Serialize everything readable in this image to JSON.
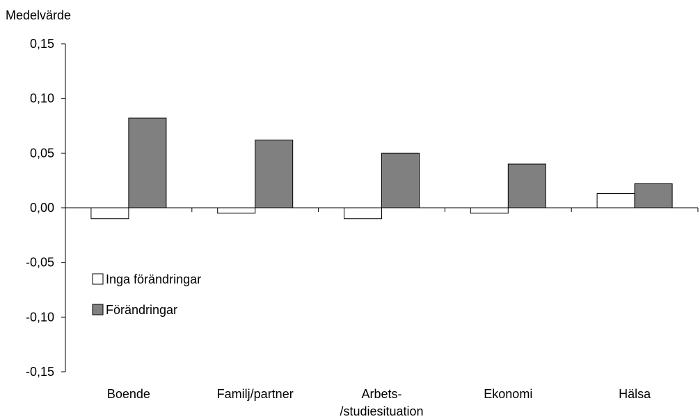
{
  "chart_data": {
    "type": "bar",
    "ylabel": "Medelvärde",
    "ylim": [
      -0.15,
      0.15
    ],
    "y_ticks": [
      "-0,15",
      "-0,10",
      "-0,05",
      "0,00",
      "0,05",
      "0,10",
      "0,15"
    ],
    "y_tick_values": [
      -0.15,
      -0.1,
      -0.05,
      0.0,
      0.05,
      0.1,
      0.15
    ],
    "categories": [
      [
        "Boende"
      ],
      [
        "Familj/partner"
      ],
      [
        "Arbets-",
        "/studiesituation"
      ],
      [
        "Ekonomi"
      ],
      [
        "Hälsa"
      ]
    ],
    "series": [
      {
        "name": "Inga förändringar",
        "values": [
          -0.01,
          -0.005,
          -0.01,
          -0.005,
          0.013
        ],
        "color": "#ffffff"
      },
      {
        "name": "Förändringar",
        "values": [
          0.082,
          0.062,
          0.05,
          0.04,
          0.022
        ],
        "color": "#808080"
      }
    ],
    "legend_position": "left-middle",
    "grid": false
  }
}
